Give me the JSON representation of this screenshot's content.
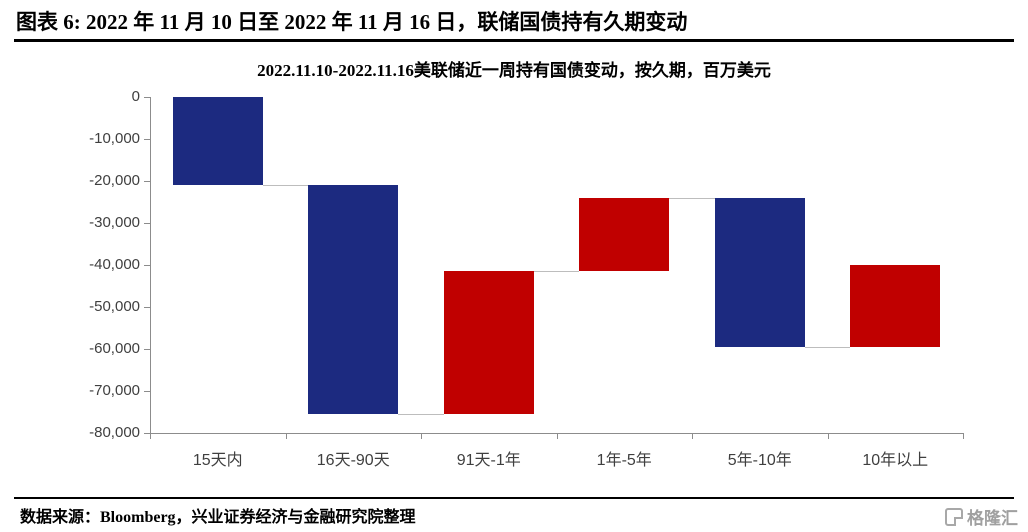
{
  "header": {
    "title": "图表 6: 2022 年 11 月 10 日至 2022 年 11 月 16 日，联储国债持有久期变动"
  },
  "chart_data": {
    "type": "waterfall",
    "title": "2022.11.10-2022.11.16美联储近一周持有国债变动，按久期，百万美元",
    "unit": "百万美元",
    "categories": [
      "15天内",
      "16天-90天",
      "91天-1年",
      "1年-5年",
      "5年-10年",
      "10年以上"
    ],
    "segments": [
      {
        "category": "15天内",
        "start": 0,
        "end": -21000,
        "change": -21000,
        "direction": "decrease"
      },
      {
        "category": "16天-90天",
        "start": -21000,
        "end": -75500,
        "change": -54500,
        "direction": "decrease"
      },
      {
        "category": "91天-1年",
        "start": -75500,
        "end": -41500,
        "change": 34000,
        "direction": "increase"
      },
      {
        "category": "1年-5年",
        "start": -41500,
        "end": -24000,
        "change": 17500,
        "direction": "increase"
      },
      {
        "category": "5年-10年",
        "start": -24000,
        "end": -59500,
        "change": -35500,
        "direction": "decrease"
      },
      {
        "category": "10年以上",
        "start": -59500,
        "end": -40000,
        "change": 19500,
        "direction": "increase"
      }
    ],
    "ylim": [
      -80000,
      0
    ],
    "yticks": [
      0,
      -10000,
      -20000,
      -30000,
      -40000,
      -50000,
      -60000,
      -70000,
      -80000
    ],
    "ytick_labels": [
      "0",
      "-10,000",
      "-20,000",
      "-30,000",
      "-40,000",
      "-50,000",
      "-60,000",
      "-70,000",
      "-80,000"
    ],
    "colors": {
      "decrease": "#1c2a80",
      "increase": "#c00000",
      "connector": "#bdbdbd",
      "axis": "#8c8c8c"
    },
    "grid": false,
    "legend": "none"
  },
  "footer": {
    "source": "数据来源：Bloomberg，兴业证券经济与金融研究院整理",
    "logo_text": "格隆汇"
  }
}
